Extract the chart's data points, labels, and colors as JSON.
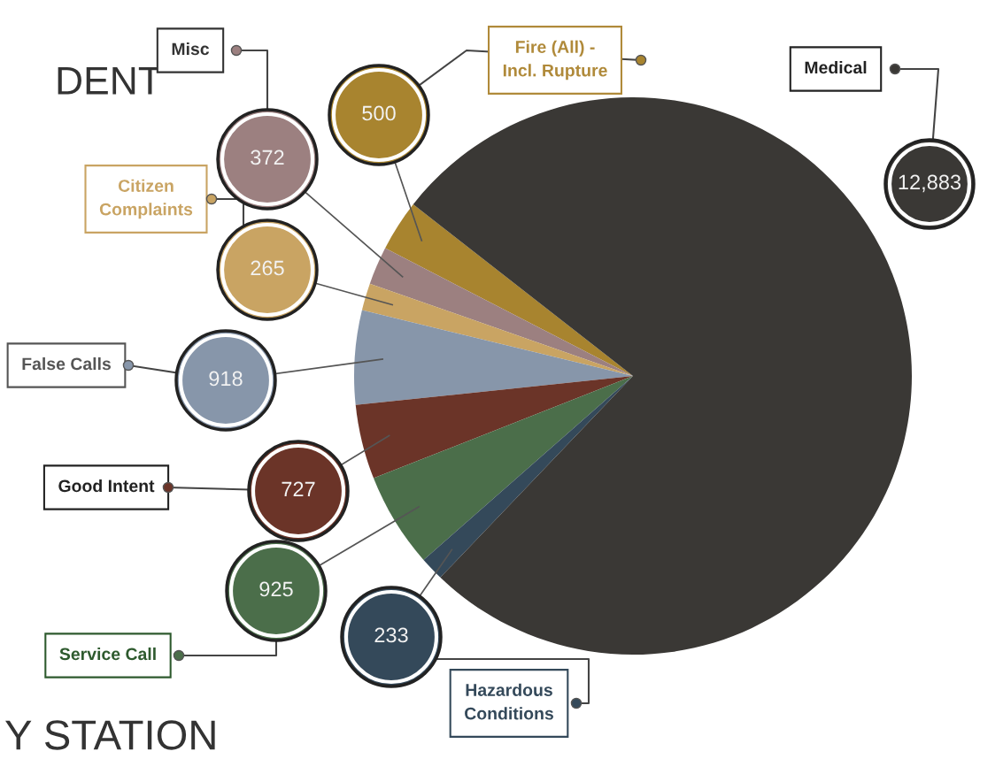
{
  "chart_data": {
    "type": "pie",
    "categories": [
      "Fire (All) -\nIncl. Rupture",
      "Misc",
      "Citizen\nComplaints",
      "False Calls",
      "Good Intent",
      "Service Call",
      "Hazardous\nConditions",
      "Medical"
    ],
    "values": [
      500,
      372,
      265,
      918,
      727,
      925,
      233,
      12883
    ],
    "value_labels": [
      "500",
      "372",
      "265",
      "918",
      "727",
      "925",
      "233",
      "12,883"
    ],
    "colors": [
      "#a8842f",
      "#9c8080",
      "#c9a463",
      "#8796aa",
      "#6b3428",
      "#4b6e4a",
      "#34495a",
      "#3a3835"
    ],
    "annotations": [
      "DENT",
      "Y STATION"
    ],
    "legend": "left"
  }
}
